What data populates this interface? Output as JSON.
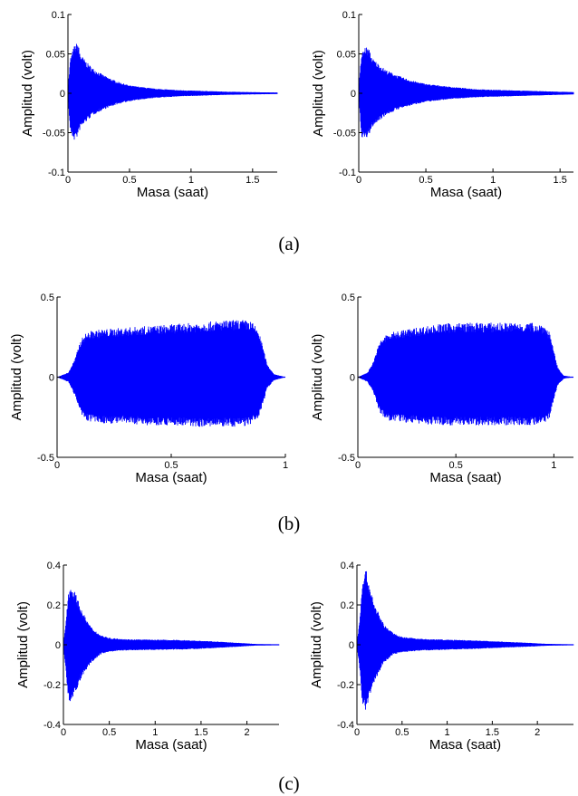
{
  "captions": [
    "(a)",
    "(b)",
    "(c)"
  ],
  "colors": {
    "signal": "#0000ff",
    "axis": "#000000",
    "background": "#ffffff"
  },
  "chart_data": [
    {
      "type": "area",
      "panel": "a-left",
      "title": "",
      "xlabel": "Masa (saat)",
      "ylabel": "Amplitud (volt)",
      "xlim": [
        0,
        1.7
      ],
      "ylim": [
        -0.1,
        0.1
      ],
      "xticks": [
        0,
        0.5,
        1,
        1.5
      ],
      "yticks": [
        -0.1,
        -0.05,
        0,
        0.05,
        0.1
      ],
      "xtick_labels": [
        "0",
        "0.5",
        "1",
        "1.5"
      ],
      "ytick_labels": [
        "-0.1",
        "-0.05",
        "0",
        "0.05",
        "0.1"
      ],
      "grid": false,
      "envelope": {
        "x": [
          0,
          0.02,
          0.05,
          0.08,
          0.1,
          0.15,
          0.2,
          0.3,
          0.4,
          0.5,
          0.7,
          0.9,
          1.1,
          1.3,
          1.5,
          1.7
        ],
        "upper": [
          0.005,
          0.045,
          0.06,
          0.065,
          0.05,
          0.04,
          0.032,
          0.022,
          0.015,
          0.01,
          0.006,
          0.004,
          0.003,
          0.002,
          0.0015,
          0.001
        ],
        "lower": [
          -0.005,
          -0.05,
          -0.06,
          -0.055,
          -0.045,
          -0.036,
          -0.028,
          -0.02,
          -0.014,
          -0.01,
          -0.006,
          -0.004,
          -0.003,
          -0.002,
          -0.0015,
          -0.001
        ]
      }
    },
    {
      "type": "area",
      "panel": "a-right",
      "title": "",
      "xlabel": "Masa (saat)",
      "ylabel": "Amplitud (volt)",
      "xlim": [
        0,
        1.6
      ],
      "ylim": [
        -0.1,
        0.1
      ],
      "xticks": [
        0,
        0.5,
        1,
        1.5
      ],
      "yticks": [
        -0.1,
        -0.05,
        0,
        0.05,
        0.1
      ],
      "xtick_labels": [
        "0",
        "0.5",
        "1",
        "1.5"
      ],
      "ytick_labels": [
        "-0.1",
        "-0.05",
        "0",
        "0.05",
        "0.1"
      ],
      "grid": false,
      "envelope": {
        "x": [
          0,
          0.02,
          0.05,
          0.08,
          0.1,
          0.15,
          0.2,
          0.3,
          0.4,
          0.5,
          0.7,
          0.9,
          1.1,
          1.3,
          1.5,
          1.6
        ],
        "upper": [
          0.005,
          0.05,
          0.06,
          0.055,
          0.045,
          0.037,
          0.03,
          0.022,
          0.016,
          0.012,
          0.008,
          0.005,
          0.004,
          0.003,
          0.002,
          0.0015
        ],
        "lower": [
          -0.005,
          -0.055,
          -0.06,
          -0.052,
          -0.043,
          -0.035,
          -0.028,
          -0.02,
          -0.015,
          -0.011,
          -0.007,
          -0.005,
          -0.004,
          -0.003,
          -0.002,
          -0.0015
        ]
      }
    },
    {
      "type": "area",
      "panel": "b-left",
      "title": "",
      "xlabel": "Masa (saat)",
      "ylabel": "Amplitud (volt)",
      "xlim": [
        0,
        1
      ],
      "ylim": [
        -0.5,
        0.5
      ],
      "xticks": [
        0,
        0.5,
        1
      ],
      "yticks": [
        -0.5,
        0,
        0.5
      ],
      "xtick_labels": [
        "0",
        "0.5",
        "1"
      ],
      "ytick_labels": [
        "-0.5",
        "0",
        "0.5"
      ],
      "grid": false,
      "envelope": {
        "x": [
          0,
          0.05,
          0.08,
          0.1,
          0.12,
          0.15,
          0.2,
          0.3,
          0.4,
          0.5,
          0.6,
          0.7,
          0.8,
          0.85,
          0.88,
          0.9,
          0.92,
          0.95,
          1.0
        ],
        "upper": [
          0.0,
          0.03,
          0.12,
          0.22,
          0.27,
          0.29,
          0.3,
          0.31,
          0.32,
          0.33,
          0.34,
          0.35,
          0.36,
          0.35,
          0.3,
          0.2,
          0.08,
          0.02,
          0.0
        ],
        "lower": [
          0.0,
          -0.03,
          -0.12,
          -0.22,
          -0.27,
          -0.28,
          -0.29,
          -0.29,
          -0.3,
          -0.3,
          -0.31,
          -0.31,
          -0.31,
          -0.3,
          -0.26,
          -0.18,
          -0.07,
          -0.02,
          0.0
        ]
      }
    },
    {
      "type": "area",
      "panel": "b-right",
      "title": "",
      "xlabel": "Masa (saat)",
      "ylabel": "Amplitud (volt)",
      "xlim": [
        0,
        1.1
      ],
      "ylim": [
        -0.5,
        0.5
      ],
      "xticks": [
        0,
        0.5,
        1
      ],
      "yticks": [
        -0.5,
        0,
        0.5
      ],
      "xtick_labels": [
        "0",
        "0.5",
        "1"
      ],
      "ytick_labels": [
        "-0.5",
        "0",
        "0.5"
      ],
      "grid": false,
      "envelope": {
        "x": [
          0,
          0.05,
          0.08,
          0.1,
          0.12,
          0.15,
          0.2,
          0.3,
          0.4,
          0.5,
          0.6,
          0.7,
          0.8,
          0.9,
          0.95,
          0.98,
          1.0,
          1.02,
          1.05,
          1.1
        ],
        "upper": [
          0.0,
          0.03,
          0.1,
          0.18,
          0.24,
          0.27,
          0.29,
          0.31,
          0.33,
          0.34,
          0.34,
          0.34,
          0.34,
          0.34,
          0.33,
          0.28,
          0.16,
          0.06,
          0.01,
          0.0
        ],
        "lower": [
          0.0,
          -0.03,
          -0.1,
          -0.18,
          -0.24,
          -0.27,
          -0.28,
          -0.29,
          -0.3,
          -0.3,
          -0.3,
          -0.3,
          -0.3,
          -0.3,
          -0.29,
          -0.25,
          -0.14,
          -0.05,
          -0.01,
          0.0
        ]
      }
    },
    {
      "type": "area",
      "panel": "c-left",
      "title": "",
      "xlabel": "Masa (saat)",
      "ylabel": "Amplitud (volt)",
      "xlim": [
        0,
        2.35
      ],
      "ylim": [
        -0.4,
        0.4
      ],
      "xticks": [
        0,
        0.5,
        1,
        1.5,
        2
      ],
      "yticks": [
        -0.4,
        -0.2,
        0,
        0.2,
        0.4
      ],
      "xtick_labels": [
        "0",
        "0.5",
        "1",
        "1.5",
        "2"
      ],
      "ytick_labels": [
        "-0.4",
        "-0.2",
        "0",
        "0.2",
        "0.4"
      ],
      "grid": false,
      "envelope": {
        "x": [
          0,
          0.02,
          0.05,
          0.08,
          0.1,
          0.15,
          0.2,
          0.3,
          0.4,
          0.5,
          0.7,
          1.0,
          1.3,
          1.6,
          1.9,
          2.1,
          2.35
        ],
        "upper": [
          0.01,
          0.08,
          0.25,
          0.3,
          0.29,
          0.24,
          0.17,
          0.09,
          0.05,
          0.035,
          0.028,
          0.026,
          0.024,
          0.018,
          0.01,
          0.004,
          0.002
        ],
        "lower": [
          -0.01,
          -0.1,
          -0.28,
          -0.31,
          -0.27,
          -0.22,
          -0.16,
          -0.09,
          -0.05,
          -0.035,
          -0.028,
          -0.026,
          -0.024,
          -0.018,
          -0.01,
          -0.004,
          -0.002
        ]
      }
    },
    {
      "type": "area",
      "panel": "c-right",
      "title": "",
      "xlabel": "Masa (saat)",
      "ylabel": "Amplitud (volt)",
      "xlim": [
        0,
        2.4
      ],
      "ylim": [
        -0.4,
        0.4
      ],
      "xticks": [
        0,
        0.5,
        1,
        1.5,
        2
      ],
      "yticks": [
        -0.4,
        -0.2,
        0,
        0.2,
        0.4
      ],
      "xtick_labels": [
        "0",
        "0.5",
        "1",
        "1.5",
        "2"
      ],
      "ytick_labels": [
        "-0.4",
        "-0.2",
        "0",
        "0.2",
        "0.4"
      ],
      "grid": false,
      "envelope": {
        "x": [
          0,
          0.03,
          0.06,
          0.1,
          0.12,
          0.15,
          0.2,
          0.3,
          0.4,
          0.5,
          0.7,
          1.0,
          1.3,
          1.6,
          1.9,
          2.1,
          2.4
        ],
        "upper": [
          0.01,
          0.12,
          0.33,
          0.38,
          0.34,
          0.28,
          0.2,
          0.1,
          0.06,
          0.04,
          0.03,
          0.026,
          0.022,
          0.016,
          0.01,
          0.005,
          0.002
        ],
        "lower": [
          -0.01,
          -0.12,
          -0.3,
          -0.33,
          -0.3,
          -0.25,
          -0.18,
          -0.09,
          -0.05,
          -0.038,
          -0.03,
          -0.025,
          -0.021,
          -0.015,
          -0.01,
          -0.005,
          -0.002
        ]
      }
    }
  ]
}
